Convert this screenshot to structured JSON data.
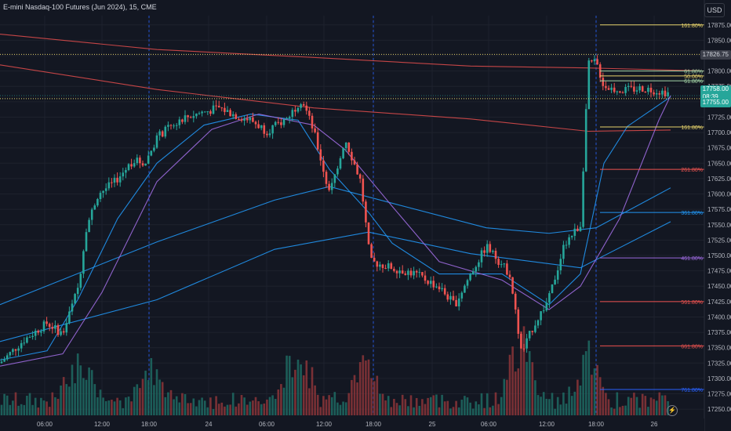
{
  "header": {
    "title": "E-mini Nasdaq-100 Futures (Jun 2024), 15, CME",
    "currency": "USD"
  },
  "price_scale": {
    "ticks": [
      "17875.00",
      "17850.00",
      "17825.00",
      "17800.00",
      "17775.00",
      "17750.00",
      "17725.00",
      "17700.00",
      "17675.00",
      "17650.00",
      "17625.00",
      "17600.00",
      "17575.00",
      "17550.00",
      "17525.00",
      "17500.00",
      "17475.00",
      "17450.00",
      "17425.00",
      "17400.00",
      "17375.00",
      "17350.00",
      "17325.00",
      "17300.00",
      "17275.00",
      "17250.00"
    ],
    "range": [
      17240,
      17890
    ]
  },
  "time_scale": {
    "labels": [
      "06:00",
      "12:00",
      "18:00",
      "24",
      "06:00",
      "12:00",
      "18:00",
      "25",
      "06:00",
      "12:00",
      "18:00",
      "26"
    ]
  },
  "tags": {
    "high_level": {
      "value": "17826.75",
      "bg": "#3c3f4a",
      "fg": "#d1d4dc"
    },
    "last_price": {
      "value": "17758.00",
      "countdown": "08:39",
      "bg": "#26a69a",
      "fg": "#ffffff"
    },
    "low_level": {
      "value": "17755.00",
      "bg": "#26a69a",
      "fg": "#ffffff"
    }
  },
  "fib_levels": [
    {
      "label": "161.80%",
      "price": 17875,
      "color": "#e6d26b",
      "x1": 765,
      "x2": 898
    },
    {
      "label": "61.80%",
      "price": 17800,
      "color": "#a5d6a7",
      "x1": 765,
      "x2": 898
    },
    {
      "label": "50.00%",
      "price": 17792,
      "color": "#e6d26b",
      "x1": 765,
      "x2": 898
    },
    {
      "label": "61.80%",
      "price": 17784,
      "color": "#a5d6a7",
      "x1": 765,
      "x2": 898
    },
    {
      "label": "161.80%",
      "price": 17709,
      "color": "#e6d26b",
      "x1": 765,
      "x2": 898
    },
    {
      "label": "261.80%",
      "price": 17640,
      "color": "#ef5350",
      "x1": 765,
      "x2": 898
    },
    {
      "label": "361.80%",
      "price": 17570,
      "color": "#2196f3",
      "x1": 765,
      "x2": 898
    },
    {
      "label": "461.80%",
      "price": 17496,
      "color": "#9c6ade",
      "x1": 765,
      "x2": 898
    },
    {
      "label": "561.80%",
      "price": 17425,
      "color": "#ef5350",
      "x1": 765,
      "x2": 898
    },
    {
      "label": "661.80%",
      "price": 17353,
      "color": "#ef5350",
      "x1": 765,
      "x2": 898
    },
    {
      "label": "761.80%",
      "price": 17282,
      "color": "#2962ff",
      "x1": 765,
      "x2": 898
    }
  ],
  "colors": {
    "up": "#26a69a",
    "down": "#ef5350",
    "up_vol": "#1f6b63",
    "down_vol": "#8c3538",
    "grid": "#1e222d",
    "session": "#2962ff",
    "dotted": "#e6d26b"
  },
  "chart_data": {
    "type": "candlestick",
    "symbol": "E-mini Nasdaq-100 Futures (Jun 2024)",
    "interval": "15",
    "exchange": "CME",
    "y_range": [
      17240,
      17890
    ],
    "waypoints": [
      [
        0,
        17325
      ],
      [
        30,
        17362
      ],
      [
        60,
        17390
      ],
      [
        80,
        17372
      ],
      [
        100,
        17450
      ],
      [
        110,
        17545
      ],
      [
        125,
        17600
      ],
      [
        145,
        17618
      ],
      [
        170,
        17655
      ],
      [
        185,
        17650
      ],
      [
        200,
        17692
      ],
      [
        230,
        17722
      ],
      [
        255,
        17732
      ],
      [
        280,
        17740
      ],
      [
        300,
        17728
      ],
      [
        320,
        17720
      ],
      [
        340,
        17702
      ],
      [
        365,
        17722
      ],
      [
        385,
        17755
      ],
      [
        400,
        17702
      ],
      [
        420,
        17600
      ],
      [
        440,
        17690
      ],
      [
        460,
        17620
      ],
      [
        472,
        17490
      ],
      [
        500,
        17480
      ],
      [
        530,
        17470
      ],
      [
        560,
        17448
      ],
      [
        580,
        17420
      ],
      [
        600,
        17470
      ],
      [
        620,
        17515
      ],
      [
        650,
        17470
      ],
      [
        665,
        17340
      ],
      [
        680,
        17385
      ],
      [
        700,
        17430
      ],
      [
        720,
        17520
      ],
      [
        740,
        17550
      ],
      [
        750,
        17810
      ],
      [
        760,
        17815
      ],
      [
        770,
        17775
      ],
      [
        790,
        17768
      ],
      [
        820,
        17772
      ],
      [
        855,
        17764
      ]
    ],
    "lines": [
      {
        "name": "",
        "color": "#d84a4a",
        "points": [
          [
            0,
            17860
          ],
          [
            200,
            17835
          ],
          [
            400,
            17822
          ],
          [
            600,
            17808
          ],
          [
            750,
            17805
          ],
          [
            900,
            17800
          ]
        ]
      },
      {
        "name": "",
        "color": "#d84a4a",
        "points": [
          [
            0,
            17810
          ],
          [
            200,
            17770
          ],
          [
            400,
            17740
          ],
          [
            600,
            17722
          ],
          [
            750,
            17702
          ],
          [
            855,
            17704
          ]
        ]
      },
      {
        "name": "",
        "color": "#2196f3",
        "points": [
          [
            0,
            17420
          ],
          [
            200,
            17522
          ],
          [
            350,
            17590
          ],
          [
            420,
            17612
          ],
          [
            500,
            17585
          ],
          [
            620,
            17545
          ],
          [
            700,
            17536
          ],
          [
            760,
            17545
          ],
          [
            855,
            17610
          ]
        ]
      },
      {
        "name": "",
        "color": "#2196f3",
        "points": [
          [
            0,
            17360
          ],
          [
            200,
            17428
          ],
          [
            350,
            17510
          ],
          [
            470,
            17538
          ],
          [
            600,
            17503
          ],
          [
            740,
            17480
          ],
          [
            855,
            17555
          ]
        ]
      },
      {
        "name": "",
        "color": "#2196f3",
        "points": [
          [
            0,
            17330
          ],
          [
            60,
            17345
          ],
          [
            100,
            17430
          ],
          [
            150,
            17560
          ],
          [
            200,
            17650
          ],
          [
            260,
            17712
          ],
          [
            320,
            17730
          ],
          [
            380,
            17720
          ],
          [
            420,
            17640
          ],
          [
            470,
            17570
          ],
          [
            500,
            17520
          ],
          [
            560,
            17470
          ],
          [
            640,
            17470
          ],
          [
            700,
            17420
          ],
          [
            740,
            17470
          ],
          [
            770,
            17650
          ],
          [
            800,
            17710
          ],
          [
            855,
            17758
          ]
        ]
      },
      {
        "name": "",
        "color": "#9c6ade",
        "points": [
          [
            0,
            17320
          ],
          [
            80,
            17340
          ],
          [
            130,
            17440
          ],
          [
            200,
            17620
          ],
          [
            270,
            17705
          ],
          [
            330,
            17730
          ],
          [
            400,
            17712
          ],
          [
            440,
            17672
          ],
          [
            500,
            17580
          ],
          [
            560,
            17490
          ],
          [
            640,
            17460
          ],
          [
            700,
            17412
          ],
          [
            740,
            17450
          ],
          [
            790,
            17560
          ],
          [
            840,
            17720
          ],
          [
            855,
            17760
          ]
        ]
      }
    ],
    "volume_profile": "estimated"
  },
  "footer": {
    "flash_icon": "lightning-icon"
  }
}
